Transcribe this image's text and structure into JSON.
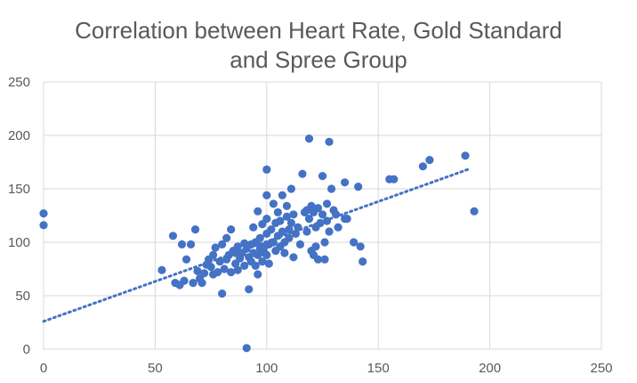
{
  "chart_data": {
    "type": "scatter",
    "title_lines": [
      "Correlation between Heart Rate, Gold Standard",
      "and Spree Group"
    ],
    "xlabel": "",
    "ylabel": "",
    "xlim": [
      0,
      250
    ],
    "ylim": [
      0,
      250
    ],
    "x_ticks": [
      "0",
      "50",
      "100",
      "150",
      "200",
      "250"
    ],
    "y_ticks": [
      "0",
      "50",
      "100",
      "150",
      "200",
      "250"
    ],
    "grid": true,
    "legend": "none",
    "colors": {
      "points": "#4472C4",
      "trendline": "#4472C4",
      "grid": "#D9D9D9",
      "text": "#595959"
    },
    "trendline": {
      "type": "linear",
      "style": "dotted",
      "x_range": [
        0,
        190
      ],
      "y_range": [
        26,
        168
      ]
    },
    "points": [
      [
        0,
        127
      ],
      [
        0,
        116
      ],
      [
        53,
        74
      ],
      [
        58,
        106
      ],
      [
        59,
        62
      ],
      [
        61,
        60
      ],
      [
        62,
        98
      ],
      [
        63,
        64
      ],
      [
        64,
        84
      ],
      [
        66,
        98
      ],
      [
        67,
        62
      ],
      [
        68,
        112
      ],
      [
        69,
        73
      ],
      [
        70,
        66
      ],
      [
        71,
        62
      ],
      [
        72,
        71
      ],
      [
        73,
        79
      ],
      [
        74,
        84
      ],
      [
        75,
        77
      ],
      [
        76,
        88
      ],
      [
        76,
        70
      ],
      [
        77,
        95
      ],
      [
        78,
        72
      ],
      [
        79,
        82
      ],
      [
        80,
        98
      ],
      [
        80,
        52
      ],
      [
        81,
        75
      ],
      [
        82,
        84
      ],
      [
        82,
        104
      ],
      [
        83,
        88
      ],
      [
        84,
        72
      ],
      [
        84,
        112
      ],
      [
        85,
        92
      ],
      [
        86,
        80
      ],
      [
        86,
        90
      ],
      [
        87,
        74
      ],
      [
        87,
        96
      ],
      [
        88,
        85
      ],
      [
        89,
        90
      ],
      [
        90,
        99
      ],
      [
        90,
        78
      ],
      [
        91,
        94
      ],
      [
        91,
        1
      ],
      [
        92,
        86
      ],
      [
        92,
        56
      ],
      [
        93,
        82
      ],
      [
        93,
        98
      ],
      [
        94,
        90
      ],
      [
        94,
        114
      ],
      [
        95,
        78
      ],
      [
        95,
        100
      ],
      [
        96,
        88
      ],
      [
        96,
        129
      ],
      [
        96,
        70
      ],
      [
        97,
        94
      ],
      [
        97,
        104
      ],
      [
        98,
        82
      ],
      [
        98,
        117
      ],
      [
        99,
        96
      ],
      [
        99,
        90
      ],
      [
        100,
        168
      ],
      [
        100,
        144
      ],
      [
        100,
        108
      ],
      [
        100,
        88
      ],
      [
        100,
        122
      ],
      [
        101,
        98
      ],
      [
        101,
        80
      ],
      [
        102,
        112
      ],
      [
        103,
        100
      ],
      [
        103,
        136
      ],
      [
        104,
        118
      ],
      [
        104,
        92
      ],
      [
        105,
        106
      ],
      [
        105,
        128
      ],
      [
        106,
        96
      ],
      [
        106,
        120
      ],
      [
        107,
        110
      ],
      [
        107,
        144
      ],
      [
        108,
        100
      ],
      [
        108,
        90
      ],
      [
        109,
        124
      ],
      [
        109,
        134
      ],
      [
        110,
        112
      ],
      [
        110,
        104
      ],
      [
        111,
        118
      ],
      [
        111,
        150
      ],
      [
        112,
        86
      ],
      [
        112,
        126
      ],
      [
        113,
        108
      ],
      [
        114,
        114
      ],
      [
        115,
        98
      ],
      [
        116,
        164
      ],
      [
        117,
        128
      ],
      [
        118,
        130
      ],
      [
        118,
        110
      ],
      [
        119,
        197
      ],
      [
        119,
        122
      ],
      [
        120,
        92
      ],
      [
        120,
        134
      ],
      [
        121,
        88
      ],
      [
        121,
        128
      ],
      [
        122,
        114
      ],
      [
        122,
        96
      ],
      [
        123,
        84
      ],
      [
        123,
        132
      ],
      [
        124,
        118
      ],
      [
        125,
        126
      ],
      [
        125,
        162
      ],
      [
        126,
        84
      ],
      [
        126,
        100
      ],
      [
        127,
        120
      ],
      [
        127,
        136
      ],
      [
        128,
        194
      ],
      [
        128,
        110
      ],
      [
        129,
        150
      ],
      [
        130,
        130
      ],
      [
        131,
        126
      ],
      [
        132,
        114
      ],
      [
        135,
        156
      ],
      [
        135,
        122
      ],
      [
        136,
        122
      ],
      [
        139,
        100
      ],
      [
        141,
        152
      ],
      [
        142,
        96
      ],
      [
        143,
        82
      ],
      [
        155,
        159
      ],
      [
        157,
        159
      ],
      [
        170,
        171
      ],
      [
        173,
        177
      ],
      [
        189,
        181
      ],
      [
        193,
        129
      ]
    ]
  }
}
